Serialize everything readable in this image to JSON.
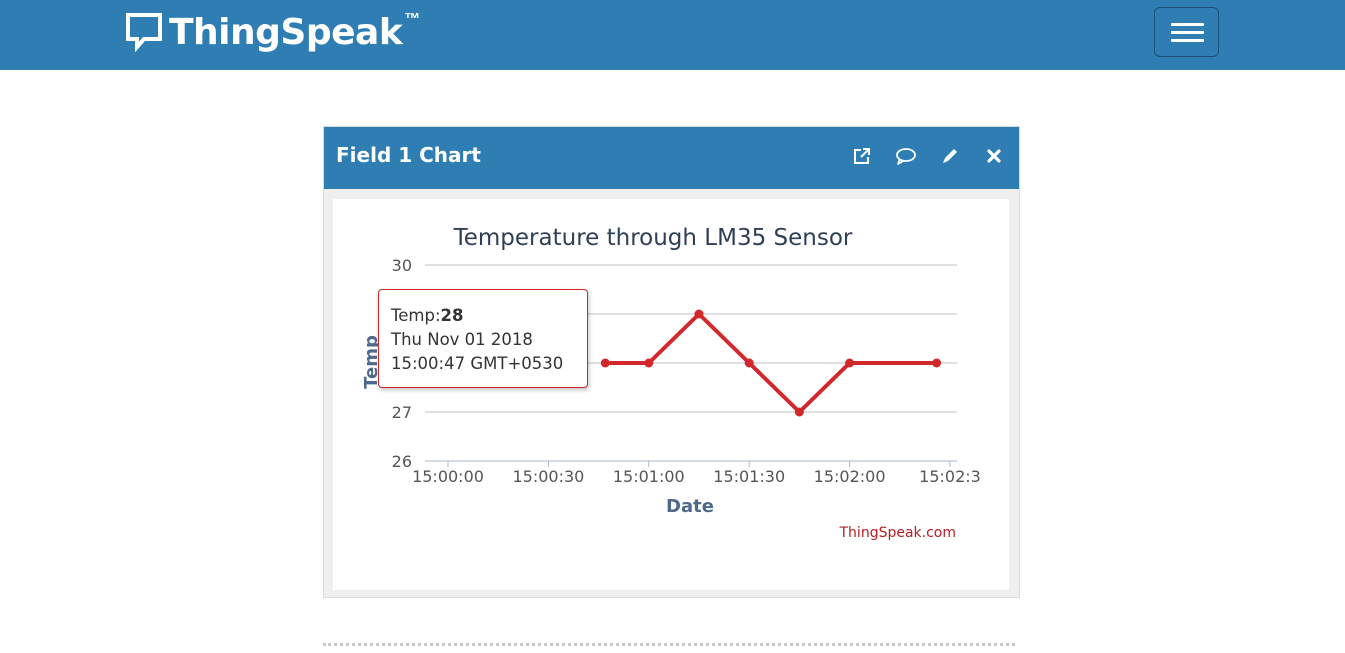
{
  "navbar": {
    "brand_name": "ThingSpeak",
    "trademark": "™",
    "logo_icon": "speech-bubble-icon",
    "menu_icon": "hamburger-icon",
    "background_color": "#2e7eb3"
  },
  "panel": {
    "title": "Field 1 Chart",
    "tools": [
      {
        "name": "external-link-icon"
      },
      {
        "name": "comment-icon"
      },
      {
        "name": "pencil-icon"
      },
      {
        "name": "close-icon"
      }
    ]
  },
  "chart_data": {
    "type": "line",
    "title": "Temperature through LM35 Sensor",
    "xlabel": "Date",
    "ylabel": "Temp",
    "credit": "ThingSpeak.com",
    "x": [
      "15:00:47",
      "15:01:00",
      "15:01:15",
      "15:01:30",
      "15:01:45",
      "15:02:00",
      "15:02:26"
    ],
    "series": [
      {
        "values": [
          28,
          28,
          29,
          28,
          27,
          28,
          28
        ],
        "color": "#d3282b"
      }
    ],
    "ylim": [
      26,
      30
    ],
    "yticks": [
      "26",
      "27",
      "28",
      "29",
      "30"
    ],
    "xticks": [
      "15:00:00",
      "15:00:30",
      "15:01:00",
      "15:01:30",
      "15:02:00",
      "15:02:3"
    ],
    "grid": true,
    "legend": "none"
  },
  "tooltip": {
    "label": "Temp:",
    "value": "28",
    "date_line": "Thu Nov 01 2018",
    "time_line": "15:00:47 GMT+0530"
  }
}
